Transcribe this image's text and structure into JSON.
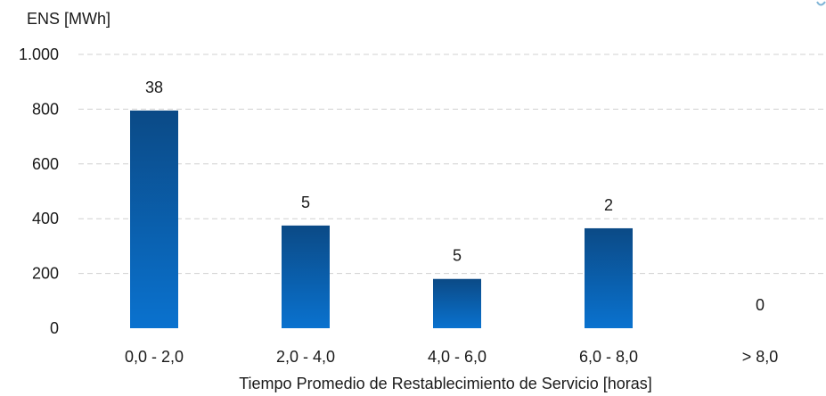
{
  "chart_data": {
    "type": "bar",
    "title": "",
    "ylabel": "ENS [MWh]",
    "xlabel": "Tiempo Promedio de Restablecimiento de Servicio [horas]",
    "categories": [
      "0,0 - 2,0",
      "2,0 - 4,0",
      "4,0 - 6,0",
      "6,0 - 8,0",
      "> 8,0"
    ],
    "values": [
      795,
      375,
      180,
      365,
      0
    ],
    "data_labels": [
      "38",
      "5",
      "5",
      "2",
      "0"
    ],
    "ylim": [
      0,
      1000
    ],
    "yticks": [
      0,
      200,
      400,
      600,
      800,
      1000
    ],
    "ytick_labels": [
      "0",
      "200",
      "400",
      "600",
      "800",
      "1.000"
    ],
    "grid": true,
    "colors": {
      "bar_top": "#0b4a86",
      "bar_bottom": "#0a72cf",
      "grid": "#d0d0d0"
    }
  }
}
